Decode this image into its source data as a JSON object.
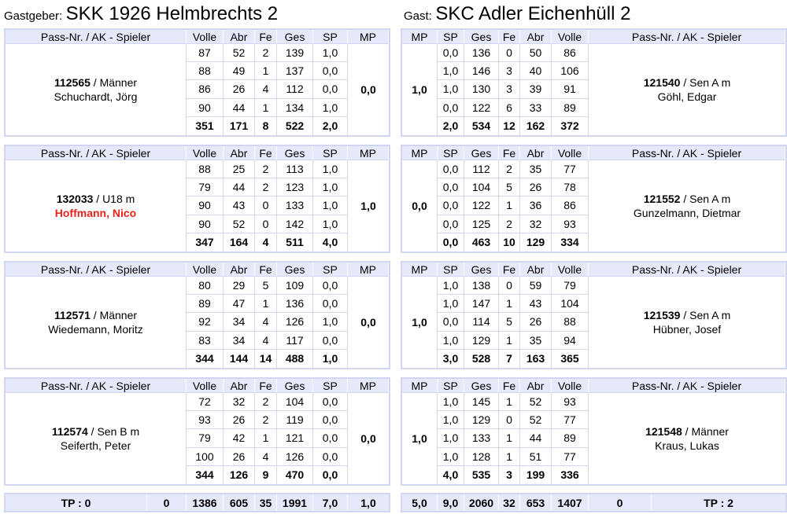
{
  "host": {
    "label": "Gastgeber:",
    "name": "SKK 1926 Helmbrechts 2"
  },
  "guest": {
    "label": "Gast:",
    "name": "SKC Adler Eichenhüll 2"
  },
  "host_headers": [
    "Pass-Nr. / AK - Spieler",
    "Volle",
    "Abr",
    "Fe",
    "Ges",
    "SP",
    "MP"
  ],
  "guest_headers": [
    "MP",
    "SP",
    "Ges",
    "Fe",
    "Abr",
    "Volle",
    "Pass-Nr. / AK - Spieler"
  ],
  "host_players": [
    {
      "pass": "112565",
      "ak": " / Männer",
      "name": "Schuchardt, Jörg",
      "mp": "0,0",
      "rows": [
        [
          "87",
          "52",
          "2",
          "139",
          "1,0"
        ],
        [
          "88",
          "49",
          "1",
          "137",
          "0,0"
        ],
        [
          "86",
          "26",
          "4",
          "112",
          "0,0"
        ],
        [
          "90",
          "44",
          "1",
          "134",
          "1,0"
        ]
      ],
      "sum": [
        "351",
        "171",
        "8",
        "522",
        "2,0"
      ]
    },
    {
      "pass": "132033",
      "ak": " / U18 m",
      "name": "Hoffmann, Nico",
      "mp": "1,0",
      "rows": [
        [
          "88",
          "25",
          "2",
          "113",
          "1,0"
        ],
        [
          "79",
          "44",
          "2",
          "123",
          "1,0"
        ],
        [
          "90",
          "43",
          "0",
          "133",
          "1,0"
        ],
        [
          "90",
          "52",
          "0",
          "142",
          "1,0"
        ]
      ],
      "sum": [
        "347",
        "164",
        "4",
        "511",
        "4,0"
      ]
    },
    {
      "pass": "112571",
      "ak": " / Männer",
      "name": "Wiedemann, Moritz",
      "mp": "0,0",
      "rows": [
        [
          "80",
          "29",
          "5",
          "109",
          "0,0"
        ],
        [
          "89",
          "47",
          "1",
          "136",
          "0,0"
        ],
        [
          "92",
          "34",
          "4",
          "126",
          "1,0"
        ],
        [
          "83",
          "34",
          "4",
          "117",
          "0,0"
        ]
      ],
      "sum": [
        "344",
        "144",
        "14",
        "488",
        "1,0"
      ]
    },
    {
      "pass": "112574",
      "ak": " / Sen B m",
      "name": "Seiferth, Peter",
      "mp": "0,0",
      "rows": [
        [
          "72",
          "32",
          "2",
          "104",
          "0,0"
        ],
        [
          "93",
          "26",
          "2",
          "119",
          "0,0"
        ],
        [
          "79",
          "42",
          "1",
          "121",
          "0,0"
        ],
        [
          "100",
          "26",
          "4",
          "126",
          "0,0"
        ]
      ],
      "sum": [
        "344",
        "126",
        "9",
        "470",
        "0,0"
      ]
    }
  ],
  "guest_players": [
    {
      "pass": "121540",
      "ak": " / Sen A m",
      "name": "Göhl, Edgar",
      "mp": "1,0",
      "rows": [
        [
          "0,0",
          "136",
          "0",
          "50",
          "86"
        ],
        [
          "1,0",
          "146",
          "3",
          "40",
          "106"
        ],
        [
          "1,0",
          "130",
          "3",
          "39",
          "91"
        ],
        [
          "0,0",
          "122",
          "6",
          "33",
          "89"
        ]
      ],
      "sum": [
        "2,0",
        "534",
        "12",
        "162",
        "372"
      ]
    },
    {
      "pass": "121552",
      "ak": " / Sen A m",
      "name": "Gunzelmann, Dietmar",
      "mp": "0,0",
      "rows": [
        [
          "0,0",
          "112",
          "2",
          "35",
          "77"
        ],
        [
          "0,0",
          "104",
          "5",
          "26",
          "78"
        ],
        [
          "0,0",
          "122",
          "1",
          "36",
          "86"
        ],
        [
          "0,0",
          "125",
          "2",
          "32",
          "93"
        ]
      ],
      "sum": [
        "0,0",
        "463",
        "10",
        "129",
        "334"
      ]
    },
    {
      "pass": "121539",
      "ak": " / Sen A m",
      "name": "Hübner, Josef",
      "mp": "1,0",
      "rows": [
        [
          "1,0",
          "138",
          "0",
          "59",
          "79"
        ],
        [
          "1,0",
          "147",
          "1",
          "43",
          "104"
        ],
        [
          "0,0",
          "114",
          "5",
          "26",
          "88"
        ],
        [
          "1,0",
          "129",
          "1",
          "35",
          "94"
        ]
      ],
      "sum": [
        "3,0",
        "528",
        "7",
        "163",
        "365"
      ]
    },
    {
      "pass": "121548",
      "ak": " / Männer",
      "name": "Kraus, Lukas",
      "mp": "1,0",
      "rows": [
        [
          "1,0",
          "145",
          "1",
          "52",
          "93"
        ],
        [
          "1,0",
          "129",
          "0",
          "52",
          "77"
        ],
        [
          "1,0",
          "133",
          "1",
          "44",
          "89"
        ],
        [
          "1,0",
          "128",
          "1",
          "51",
          "77"
        ]
      ],
      "sum": [
        "4,0",
        "535",
        "3",
        "199",
        "336"
      ]
    }
  ],
  "host_total": [
    "TP : 0",
    "0",
    "1386",
    "605",
    "35",
    "1991",
    "7,0",
    "1,0"
  ],
  "guest_total": [
    "5,0",
    "9,0",
    "2060",
    "32",
    "653",
    "1407",
    "0",
    "TP : 2"
  ],
  "colors": {
    "header_bg": "#e6e9fa",
    "border": "#d2d6f1",
    "highlight_name": "#e8231c"
  }
}
